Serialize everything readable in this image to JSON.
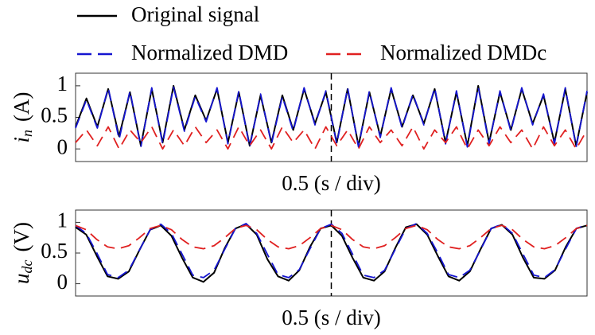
{
  "chart_data": [
    {
      "type": "line",
      "ylabel_symbol": "i",
      "ylabel_subscript": "n",
      "ylabel_unit": "(A)",
      "xlabel": "0.5 (s / div)",
      "x": [
        0,
        1,
        2,
        3,
        4,
        5,
        6,
        7,
        8,
        9,
        10,
        11,
        12,
        13,
        14,
        15,
        16,
        17,
        18,
        19,
        20,
        21,
        22,
        23,
        24,
        25,
        26,
        27,
        28,
        29,
        30,
        31,
        32,
        33,
        34,
        35,
        36,
        37,
        38,
        39,
        40,
        41,
        42,
        43,
        44,
        45,
        46,
        47
      ],
      "xlim": [
        0,
        47
      ],
      "ylim": [
        -0.2,
        1.2
      ],
      "yticks": [
        0,
        0.5,
        1
      ],
      "series": [
        {
          "name": "Original signal",
          "color": "#000000",
          "dash": "solid",
          "values": [
            0.35,
            0.8,
            0.35,
            0.95,
            0.2,
            0.9,
            0.05,
            0.95,
            0.1,
            1.0,
            0.3,
            0.85,
            0.45,
            0.95,
            0.1,
            0.9,
            0.05,
            0.85,
            0.1,
            0.85,
            0.3,
            0.95,
            0.4,
            0.9,
            0.1,
            0.95,
            0.05,
            0.9,
            0.2,
            0.95,
            0.35,
            0.85,
            0.4,
            0.95,
            0.1,
            0.9,
            0.05,
            1.0,
            0.1,
            0.9,
            0.3,
            0.95,
            0.4,
            0.85,
            0.1,
            0.95,
            0.05,
            0.9
          ]
        },
        {
          "name": "Normalized DMD",
          "color": "#1515d0",
          "dash": "dashed",
          "values": [
            0.33,
            0.78,
            0.33,
            0.97,
            0.15,
            0.92,
            0.03,
            0.97,
            0.08,
            0.98,
            0.28,
            0.83,
            0.43,
            0.97,
            0.08,
            0.92,
            0.03,
            0.87,
            0.08,
            0.83,
            0.28,
            0.97,
            0.38,
            0.92,
            0.08,
            0.97,
            0.03,
            0.92,
            0.18,
            0.97,
            0.33,
            0.87,
            0.38,
            0.97,
            0.08,
            0.92,
            0.03,
            0.98,
            0.08,
            0.92,
            0.28,
            0.97,
            0.38,
            0.87,
            0.08,
            0.97,
            0.03,
            0.92
          ]
        },
        {
          "name": "Normalized DMDc",
          "color": "#e02020",
          "dash": "dashed",
          "values": [
            0.1,
            0.3,
            0.05,
            0.35,
            0.0,
            0.3,
            0.1,
            0.35,
            0.0,
            0.3,
            0.05,
            0.35,
            0.1,
            0.3,
            0.0,
            0.35,
            0.05,
            0.3,
            0.0,
            0.35,
            0.1,
            0.3,
            0.0,
            0.35,
            0.05,
            0.3,
            0.0,
            0.35,
            0.1,
            0.3,
            0.05,
            0.35,
            0.0,
            0.3,
            0.1,
            0.35,
            0.0,
            0.3,
            0.05,
            0.35,
            0.1,
            0.3,
            0.0,
            0.35,
            0.05,
            0.3,
            0.0,
            0.3
          ]
        }
      ]
    },
    {
      "type": "line",
      "ylabel_symbol": "u",
      "ylabel_subscript": "dc",
      "ylabel_unit": "(V)",
      "xlabel": "0.5 (s / div)",
      "x": [
        0,
        1,
        2,
        3,
        4,
        5,
        6,
        7,
        8,
        9,
        10,
        11,
        12,
        13,
        14,
        15,
        16,
        17,
        18,
        19,
        20,
        21,
        22,
        23,
        24,
        25,
        26,
        27,
        28,
        29,
        30,
        31,
        32,
        33,
        34,
        35,
        36,
        37,
        38,
        39,
        40,
        41,
        42,
        43,
        44,
        45,
        46,
        47,
        48
      ],
      "xlim": [
        0,
        48
      ],
      "ylim": [
        -0.2,
        1.2
      ],
      "yticks": [
        0,
        0.5,
        1
      ],
      "series": [
        {
          "color": "#000000",
          "dash": "solid",
          "values": [
            0.92,
            0.8,
            0.45,
            0.12,
            0.08,
            0.2,
            0.55,
            0.88,
            0.95,
            0.78,
            0.42,
            0.1,
            0.03,
            0.18,
            0.58,
            0.9,
            0.97,
            0.8,
            0.4,
            0.12,
            0.05,
            0.22,
            0.6,
            0.9,
            0.95,
            0.78,
            0.42,
            0.1,
            0.05,
            0.2,
            0.58,
            0.92,
            0.97,
            0.8,
            0.45,
            0.12,
            0.05,
            0.2,
            0.56,
            0.9,
            0.96,
            0.8,
            0.42,
            0.1,
            0.08,
            0.22,
            0.6,
            0.9,
            0.95
          ]
        },
        {
          "color": "#1515d0",
          "dash": "dashed",
          "values": [
            0.95,
            0.82,
            0.5,
            0.15,
            0.1,
            0.22,
            0.55,
            0.88,
            0.97,
            0.82,
            0.48,
            0.14,
            0.1,
            0.22,
            0.56,
            0.9,
            0.98,
            0.82,
            0.48,
            0.15,
            0.1,
            0.23,
            0.57,
            0.9,
            0.97,
            0.82,
            0.48,
            0.14,
            0.1,
            0.22,
            0.56,
            0.9,
            0.98,
            0.82,
            0.5,
            0.15,
            0.1,
            0.22,
            0.55,
            0.9,
            0.97,
            0.82,
            0.48,
            0.14,
            0.1,
            0.23,
            0.57,
            0.9,
            0.96
          ]
        },
        {
          "color": "#e02020",
          "dash": "dashed",
          "values": [
            0.95,
            0.88,
            0.72,
            0.6,
            0.57,
            0.62,
            0.75,
            0.9,
            0.95,
            0.88,
            0.72,
            0.6,
            0.57,
            0.62,
            0.75,
            0.9,
            0.95,
            0.88,
            0.72,
            0.6,
            0.57,
            0.62,
            0.75,
            0.9,
            0.95,
            0.88,
            0.72,
            0.6,
            0.57,
            0.62,
            0.75,
            0.9,
            0.95,
            0.88,
            0.72,
            0.6,
            0.57,
            0.62,
            0.75,
            0.9,
            0.95,
            0.88,
            0.72,
            0.6,
            0.57,
            0.62,
            0.75,
            0.9,
            0.95
          ]
        }
      ]
    }
  ]
}
